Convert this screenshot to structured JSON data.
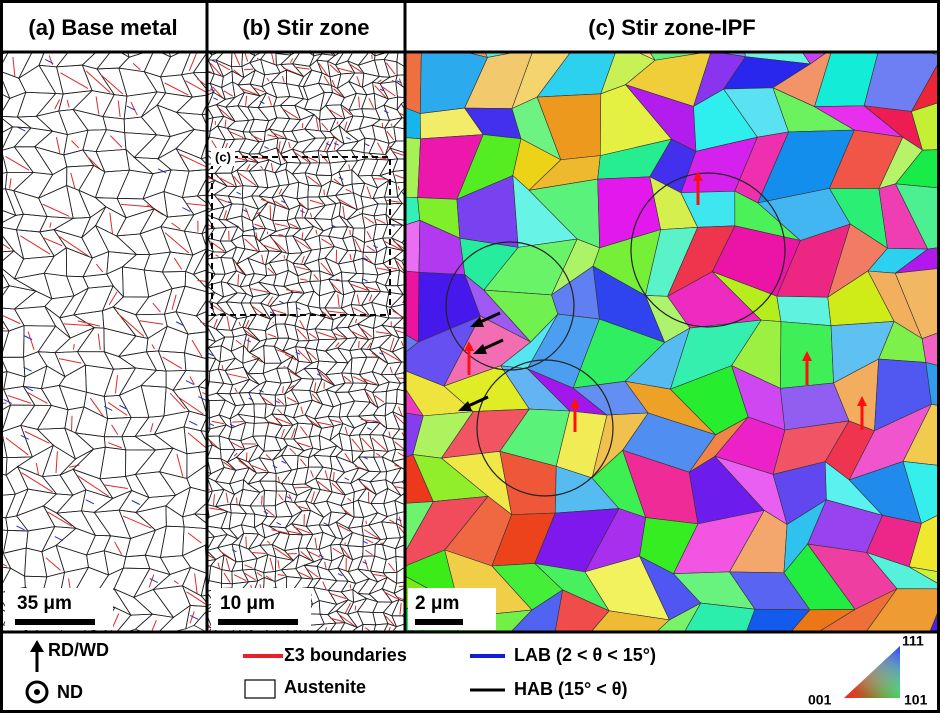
{
  "panels": [
    {
      "title": "(a) Base metal",
      "scale_bar": "35 μm"
    },
    {
      "title": "(b) Stir zone",
      "scale_bar": "10 μm",
      "inset_label": "(c)"
    },
    {
      "title": "(c) Stir zone-IPF",
      "scale_bar": "2 μm"
    }
  ],
  "legend": {
    "direction_up": "RD/WD",
    "direction_out": "ND",
    "sigma3": "Σ3 boundaries",
    "austenite": "Austenite",
    "lab": "LAB (2 < θ < 15°)",
    "hab": "HAB (15° < θ)",
    "ipf_111": "111",
    "ipf_001": "001",
    "ipf_101": "101"
  }
}
